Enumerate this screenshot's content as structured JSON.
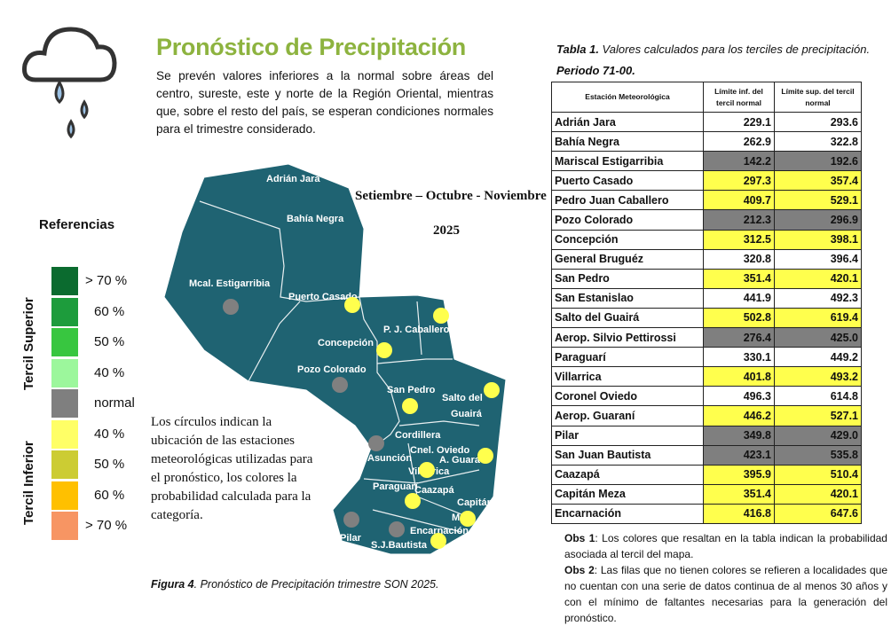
{
  "header": {
    "title": "Pronóstico de Precipitación",
    "intro": "Se prevén valores inferiores a la normal sobre áreas del centro, sureste, este y norte de la Región Oriental, mientras que, sobre el resto del país, se esperan condiciones normales para el trimestre considerado.",
    "icon": "rain-cloud-icon"
  },
  "legend": {
    "title": "Referencias",
    "upper_label": "Tercil Superior",
    "lower_label": "Tercil Inferior",
    "items": [
      {
        "label": "> 70 %",
        "color": "#0b6b2f"
      },
      {
        "label": "60 %",
        "color": "#1d9c3c"
      },
      {
        "label": "50 %",
        "color": "#38c640"
      },
      {
        "label": "40 %",
        "color": "#9cf79c"
      },
      {
        "label": "normal",
        "color": "#7f7f7f"
      },
      {
        "label": "40 %",
        "color": "#ffff66"
      },
      {
        "label": "50 %",
        "color": "#cccc33"
      },
      {
        "label": "60 %",
        "color": "#ffc000"
      },
      {
        "label": "> 70 %",
        "color": "#f79563"
      }
    ]
  },
  "map": {
    "period": "Setiembre – Octubre -  Noviembre",
    "year": "2025",
    "fill": "#1f6372",
    "regions": [
      "Adrián Jara",
      "Bahía Negra",
      "Mcal. Estigarribia",
      "Puerto Casado",
      "P. J. Caballero",
      "Concepción",
      "Pozo Colorado",
      "San Pedro",
      "Salto del",
      "Guairá",
      "Cordillera",
      "Asunción",
      "Cnel. Oviedo",
      "A. Guara",
      "Villarrica",
      "Paraguarí",
      "Caazapá",
      "Capitán",
      "M",
      "Encarnación",
      "Pilar",
      "S.J.Bautista"
    ],
    "stations": [
      {
        "name": "Mcal. Estigarribia",
        "color": "#808080"
      },
      {
        "name": "Puerto Casado",
        "color": "#ffff4d"
      },
      {
        "name": "P. J. Caballero",
        "color": "#ffff4d"
      },
      {
        "name": "Concepción",
        "color": "#ffff4d"
      },
      {
        "name": "Pozo Colorado",
        "color": "#808080"
      },
      {
        "name": "San Pedro",
        "color": "#ffff4d"
      },
      {
        "name": "Salto del Guairá",
        "color": "#ffff4d"
      },
      {
        "name": "Asunción",
        "color": "#808080"
      },
      {
        "name": "A. Guaraní",
        "color": "#ffff4d"
      },
      {
        "name": "Villarrica",
        "color": "#ffff4d"
      },
      {
        "name": "Caazapá",
        "color": "#ffff4d"
      },
      {
        "name": "Capitán Meza",
        "color": "#ffff4d"
      },
      {
        "name": "Encarnación",
        "color": "#ffff4d"
      },
      {
        "name": "Pilar",
        "color": "#808080"
      },
      {
        "name": "S.J.Bautista",
        "color": "#808080"
      }
    ],
    "note": "Los círculos indican la ubicación de las estaciones meteorológicas utilizadas para el pronóstico, los colores la probabilidad calculada para la categoría."
  },
  "figure_caption": {
    "label": "Figura 4",
    "text": ". Pronóstico de Precipitación trimestre SON 2025."
  },
  "table": {
    "caption_label": "Tabla 1.",
    "caption_text": " Valores calculados para los terciles de precipitación.",
    "period": "Periodo 71-00.",
    "headers": [
      "Estación Meteorológica",
      "Límite inf. del tercil normal",
      "Límite sup. del tercil normal"
    ],
    "rows": [
      [
        "Adrián Jara",
        "229.1",
        "293.6",
        ""
      ],
      [
        "Bahía Negra",
        "262.9",
        "322.8",
        ""
      ],
      [
        "Mariscal Estigarribia",
        "142.2",
        "192.6",
        "gray"
      ],
      [
        "Puerto Casado",
        "297.3",
        "357.4",
        "yellow"
      ],
      [
        "Pedro Juan Caballero",
        "409.7",
        "529.1",
        "yellow"
      ],
      [
        "Pozo Colorado",
        "212.3",
        "296.9",
        "gray"
      ],
      [
        "Concepción",
        "312.5",
        "398.1",
        "yellow"
      ],
      [
        "General Bruguéz",
        "320.8",
        "396.4",
        ""
      ],
      [
        "San Pedro",
        "351.4",
        "420.1",
        "yellow"
      ],
      [
        "San Estanislao",
        "441.9",
        "492.3",
        ""
      ],
      [
        "Salto del Guairá",
        "502.8",
        "619.4",
        "yellow"
      ],
      [
        "Aerop. Silvio Pettirossi",
        "276.4",
        "425.0",
        "gray"
      ],
      [
        "Paraguarí",
        "330.1",
        "449.2",
        ""
      ],
      [
        "Villarrica",
        "401.8",
        "493.2",
        "yellow"
      ],
      [
        "Coronel Oviedo",
        "496.3",
        "614.8",
        ""
      ],
      [
        "Aerop. Guaraní",
        "446.2",
        "527.1",
        "yellow"
      ],
      [
        "Pilar",
        "349.8",
        "429.0",
        "gray"
      ],
      [
        "San Juan Bautista",
        "423.1",
        "535.8",
        "gray"
      ],
      [
        "Caazapá",
        "395.9",
        "510.4",
        "yellow"
      ],
      [
        "Capitán Meza",
        "351.4",
        "420.1",
        "yellow"
      ],
      [
        "Encarnación",
        "416.8",
        "647.6",
        "yellow"
      ]
    ],
    "colors": {
      "yellow": "#ffff4d",
      "gray": "#7f7f7f"
    }
  },
  "obs": [
    {
      "label": "Obs 1",
      "text": ": Los colores que resaltan en la tabla indican la probabilidad asociada al tercil del mapa."
    },
    {
      "label": "Obs 2",
      "text": ": Las filas que no tienen colores se refieren a localidades que no cuentan con una serie de datos continua de al menos 30 años y con el mínimo de faltantes necesarias para la generación del pronóstico."
    }
  ]
}
